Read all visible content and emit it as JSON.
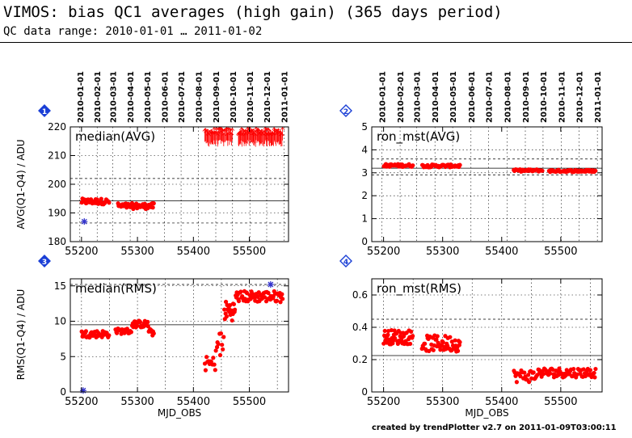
{
  "header": {
    "title": "VIMOS: bias QC1 averages (high gain) (365 days period)",
    "subtitle": "QC data range: 2010-01-01 … 2011-01-02"
  },
  "footer": "created by trendPlotter v2.7 on 2011-01-09T03:00:11",
  "chart_data": [
    {
      "panel": "1",
      "type": "scatter",
      "label": "median(AVG)",
      "ylabel": "AVG(Q1-Q4) / ADU",
      "xlabel": "",
      "xlim": [
        55180,
        55570
      ],
      "ylim": [
        180,
        220
      ],
      "yticks": [
        180,
        190,
        200,
        210,
        220
      ],
      "xticks": [
        55200,
        55300,
        55400,
        55500
      ],
      "ref_line": 194.2,
      "dotted_limits": [
        186.5,
        202
      ],
      "date_labels": [
        "2010-01-01",
        "2010-02-01",
        "2010-03-01",
        "2010-04-01",
        "2010-05-01",
        "2010-06-01",
        "2010-07-01",
        "2010-08-01",
        "2010-09-01",
        "2010-10-01",
        "2010-11-01",
        "2010-12-01",
        "2011-01-01"
      ],
      "date_mjd": [
        55197,
        55228,
        55256,
        55287,
        55317,
        55348,
        55378,
        55409,
        55440,
        55470,
        55501,
        55531,
        55562
      ],
      "series": [
        {
          "marker": "dot",
          "color": "#ff0000",
          "segments": [
            {
              "x": [
                55200,
                55250
              ],
              "y": 194.0,
              "jitter": 1.0,
              "n": 40
            },
            {
              "x": [
                55265,
                55330
              ],
              "y": 192.4,
              "jitter": 1.0,
              "n": 50
            }
          ]
        },
        {
          "marker": "arrow-up",
          "color": "#ff0000",
          "segments": [
            {
              "x": [
                55420,
                55470
              ],
              "y": 216.5,
              "jitter": 1.2,
              "n": 40
            },
            {
              "x": [
                55480,
                55560
              ],
              "y": 216.5,
              "jitter": 1.2,
              "n": 70
            }
          ]
        },
        {
          "marker": "star",
          "color": "#3333cc",
          "points": [
            [
              55205,
              187
            ]
          ]
        }
      ]
    },
    {
      "panel": "2",
      "type": "scatter",
      "label": "ron_mst(AVG)",
      "ylabel": "",
      "xlabel": "",
      "xlim": [
        55180,
        55570
      ],
      "ylim": [
        0,
        5
      ],
      "yticks": [
        0,
        1,
        2,
        3,
        4,
        5
      ],
      "xticks": [
        55200,
        55300,
        55400,
        55500
      ],
      "ref_line": 3.2,
      "dotted_limits": [
        2.9,
        3.6
      ],
      "date_labels": [
        "2010-01-01",
        "2010-02-01",
        "2010-03-01",
        "2010-04-01",
        "2010-05-01",
        "2010-06-01",
        "2010-07-01",
        "2010-08-01",
        "2010-09-01",
        "2010-10-01",
        "2010-11-01",
        "2010-12-01",
        "2011-01-01"
      ],
      "date_mjd": [
        55197,
        55228,
        55256,
        55287,
        55317,
        55348,
        55378,
        55409,
        55440,
        55470,
        55501,
        55531,
        55562
      ],
      "series": [
        {
          "marker": "dot",
          "color": "#ff0000",
          "segments": [
            {
              "x": [
                55200,
                55250
              ],
              "y": 3.32,
              "jitter": 0.06,
              "n": 40
            },
            {
              "x": [
                55265,
                55330
              ],
              "y": 3.3,
              "jitter": 0.06,
              "n": 50
            },
            {
              "x": [
                55420,
                55470
              ],
              "y": 3.1,
              "jitter": 0.05,
              "n": 30
            },
            {
              "x": [
                55480,
                55560
              ],
              "y": 3.08,
              "jitter": 0.05,
              "n": 60
            }
          ]
        }
      ]
    },
    {
      "panel": "3",
      "type": "scatter",
      "label": "median(RMS)",
      "ylabel": "RMS(Q1-Q4) / ADU",
      "xlabel": "MJD_OBS",
      "xlim": [
        55180,
        55570
      ],
      "ylim": [
        0,
        16
      ],
      "yticks": [
        0,
        5,
        10,
        15
      ],
      "xticks": [
        55200,
        55300,
        55400,
        55500
      ],
      "ref_line": 9.5,
      "dotted_limits": [
        15.2
      ],
      "series": [
        {
          "marker": "dot",
          "color": "#ff0000",
          "segments": [
            {
              "x": [
                55200,
                55250
              ],
              "y": 8.2,
              "jitter": 0.5,
              "n": 40
            },
            {
              "x": [
                55260,
                55290
              ],
              "y": 8.6,
              "jitter": 0.4,
              "n": 20
            },
            {
              "x": [
                55290,
                55320
              ],
              "y": 9.6,
              "jitter": 0.5,
              "n": 25
            },
            {
              "x": [
                55320,
                55330
              ],
              "y": 8.4,
              "jitter": 0.5,
              "n": 8
            },
            {
              "x": [
                55420,
                55440
              ],
              "y": 4.0,
              "jitter": 1.0,
              "n": 12
            },
            {
              "x": [
                55440,
                55455
              ],
              "y": 6.5,
              "jitter": 2.5,
              "n": 10
            },
            {
              "x": [
                55455,
                55475
              ],
              "y": 11.5,
              "jitter": 1.4,
              "n": 20
            },
            {
              "x": [
                55475,
                55560
              ],
              "y": 13.5,
              "jitter": 0.8,
              "n": 70
            }
          ]
        },
        {
          "marker": "star",
          "color": "#3333cc",
          "points": [
            [
              55203,
              0.2
            ],
            [
              55538,
              15.2
            ]
          ]
        }
      ]
    },
    {
      "panel": "4",
      "type": "scatter",
      "label": "ron_mst(RMS)",
      "ylabel": "",
      "xlabel": "MJD_OBS",
      "xlim": [
        55180,
        55570
      ],
      "ylim": [
        0,
        0.7
      ],
      "yticks": [
        0,
        0.2,
        0.4,
        0.6
      ],
      "xticks": [
        55200,
        55300,
        55400,
        55500
      ],
      "ref_line": 0.225,
      "dotted_limits": [
        0.45
      ],
      "series": [
        {
          "marker": "dot",
          "color": "#ff0000",
          "segments": [
            {
              "x": [
                55200,
                55250
              ],
              "y": 0.34,
              "jitter": 0.045,
              "n": 50
            },
            {
              "x": [
                55265,
                55330
              ],
              "y": 0.3,
              "jitter": 0.05,
              "n": 55
            },
            {
              "x": [
                55420,
                55460
              ],
              "y": 0.1,
              "jitter": 0.04,
              "n": 25
            },
            {
              "x": [
                55460,
                55560
              ],
              "y": 0.12,
              "jitter": 0.03,
              "n": 70
            }
          ]
        }
      ]
    }
  ]
}
